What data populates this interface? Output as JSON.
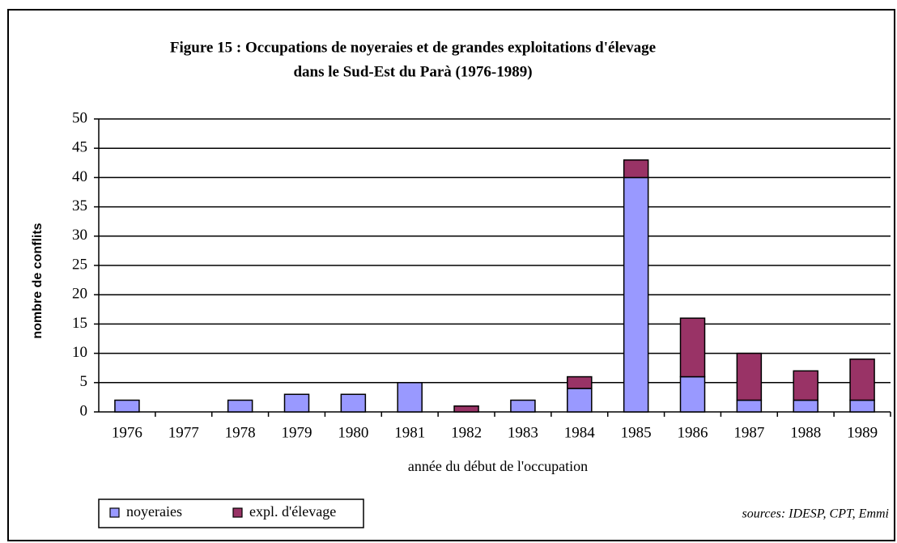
{
  "chart_data": {
    "type": "stacked_bar",
    "title": [
      "Figure 15 : Occupations de noyeraies et de grandes exploitations d'élevage",
      "dans le Sud-Est du Parà (1976-1989)"
    ],
    "x_label": "année du début de l'occupation",
    "y_label": "nombre de conflits",
    "source": "sources: IDESP, CPT, Emmi",
    "categories": [
      "1976",
      "1977",
      "1978",
      "1979",
      "1980",
      "1981",
      "1982",
      "1983",
      "1984",
      "1985",
      "1986",
      "1987",
      "1988",
      "1989"
    ],
    "series": [
      {
        "name": "noyeraies",
        "color": "#9999ff",
        "values": [
          2,
          0,
          2,
          3,
          3,
          5,
          0,
          2,
          4,
          40,
          6,
          2,
          2,
          2
        ]
      },
      {
        "name": "expl. d'élevage",
        "color": "#993366",
        "values": [
          0,
          0,
          0,
          0,
          0,
          0,
          1,
          0,
          2,
          3,
          10,
          8,
          5,
          7
        ]
      }
    ],
    "ylim": [
      0,
      50
    ],
    "yticks": [
      0,
      5,
      10,
      15,
      20,
      25,
      30,
      35,
      40,
      45,
      50
    ],
    "grid": true
  }
}
